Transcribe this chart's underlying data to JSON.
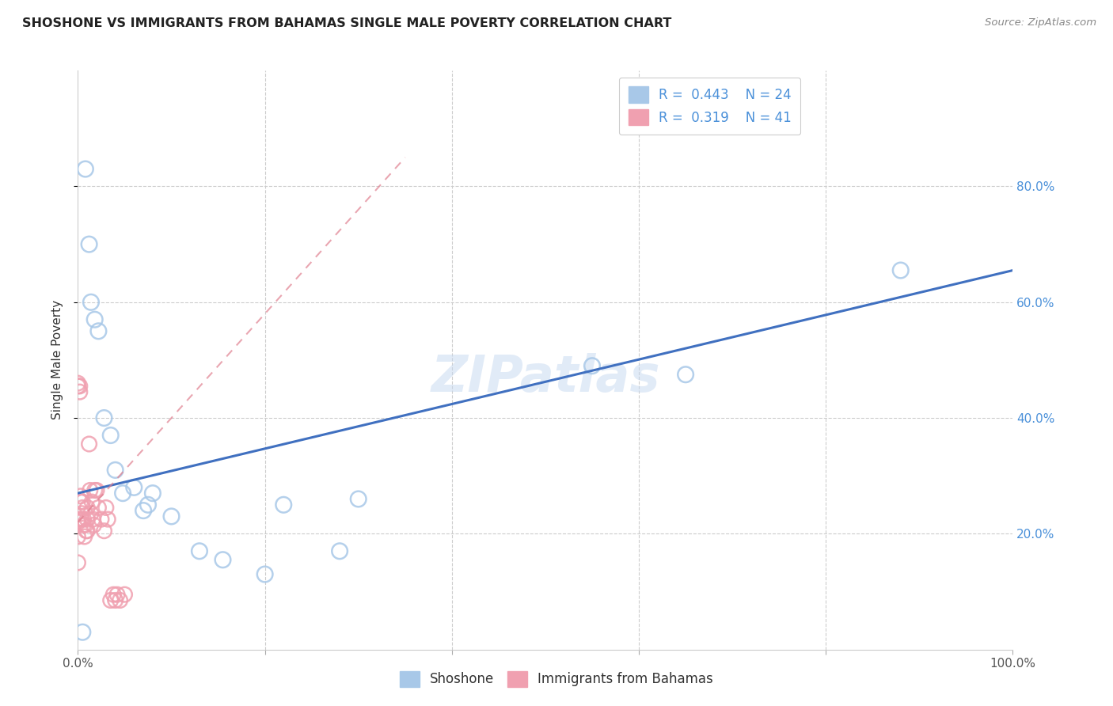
{
  "title": "SHOSHONE VS IMMIGRANTS FROM BAHAMAS SINGLE MALE POVERTY CORRELATION CHART",
  "source": "Source: ZipAtlas.com",
  "ylabel": "Single Male Poverty",
  "xlim": [
    0,
    1.0
  ],
  "ylim": [
    0,
    1.0
  ],
  "shoshone_color": "#a8c8e8",
  "bahamas_color": "#f0a0b0",
  "shoshone_line_color": "#4070c0",
  "bahamas_line_color": "#e08090",
  "watermark": "ZIPatlas",
  "shoshone_x": [
    0.008,
    0.012,
    0.014,
    0.018,
    0.022,
    0.028,
    0.035,
    0.04,
    0.048,
    0.06,
    0.07,
    0.075,
    0.08,
    0.1,
    0.13,
    0.155,
    0.2,
    0.22,
    0.28,
    0.3,
    0.55,
    0.65,
    0.88,
    0.005
  ],
  "shoshone_y": [
    0.83,
    0.7,
    0.6,
    0.57,
    0.55,
    0.4,
    0.37,
    0.31,
    0.27,
    0.28,
    0.24,
    0.25,
    0.27,
    0.23,
    0.17,
    0.155,
    0.13,
    0.25,
    0.17,
    0.26,
    0.49,
    0.475,
    0.655,
    0.03
  ],
  "bahamas_x": [
    0.0,
    0.0,
    0.0,
    0.0,
    0.0,
    0.0,
    0.002,
    0.002,
    0.003,
    0.003,
    0.004,
    0.004,
    0.005,
    0.005,
    0.006,
    0.006,
    0.007,
    0.008,
    0.009,
    0.01,
    0.01,
    0.01,
    0.012,
    0.013,
    0.014,
    0.015,
    0.016,
    0.017,
    0.018,
    0.02,
    0.022,
    0.025,
    0.028,
    0.03,
    0.032,
    0.035,
    0.038,
    0.04,
    0.042,
    0.045,
    0.05
  ],
  "bahamas_y": [
    0.46,
    0.455,
    0.225,
    0.22,
    0.195,
    0.15,
    0.455,
    0.445,
    0.265,
    0.255,
    0.235,
    0.225,
    0.255,
    0.245,
    0.225,
    0.215,
    0.195,
    0.215,
    0.205,
    0.205,
    0.225,
    0.245,
    0.355,
    0.275,
    0.235,
    0.255,
    0.225,
    0.215,
    0.275,
    0.275,
    0.245,
    0.225,
    0.205,
    0.245,
    0.225,
    0.085,
    0.095,
    0.085,
    0.095,
    0.085,
    0.095
  ],
  "shoshone_line_x0": 0.0,
  "shoshone_line_x1": 1.0,
  "shoshone_line_y0": 0.27,
  "shoshone_line_y1": 0.655,
  "bahamas_line_x0": 0.0,
  "bahamas_line_x1": 0.35,
  "bahamas_line_y0": 0.22,
  "bahamas_line_y1": 0.85
}
